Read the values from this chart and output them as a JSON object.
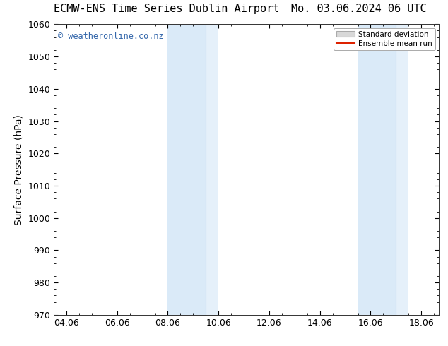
{
  "title_left": "ECMW-ENS Time Series Dublin Airport",
  "title_right": "Mo. 03.06.2024 06 UTC",
  "ylabel": "Surface Pressure (hPa)",
  "ylim": [
    970,
    1060
  ],
  "yticks": [
    970,
    980,
    990,
    1000,
    1010,
    1020,
    1030,
    1040,
    1050,
    1060
  ],
  "xlim_start": 3.5,
  "xlim_end": 18.7,
  "xtick_labels": [
    "04.06",
    "06.06",
    "08.06",
    "10.06",
    "12.06",
    "14.06",
    "16.06",
    "18.06"
  ],
  "xtick_positions": [
    4,
    6,
    8,
    10,
    12,
    14,
    16,
    18
  ],
  "shaded_regions": [
    {
      "x_start": 8.0,
      "x_end": 9.5,
      "color": "#daeaf8"
    },
    {
      "x_start": 9.5,
      "x_end": 10.0,
      "color": "#e5f0fa"
    },
    {
      "x_start": 15.5,
      "x_end": 17.0,
      "color": "#daeaf8"
    },
    {
      "x_start": 17.0,
      "x_end": 17.5,
      "color": "#e5f0fa"
    }
  ],
  "band_dividers": [
    9.5,
    17.0
  ],
  "divider_color": "#b8d4ea",
  "watermark_text": "© weatheronline.co.nz",
  "watermark_color": "#3366aa",
  "legend_std_label": "Standard deviation",
  "legend_mean_label": "Ensemble mean run",
  "legend_std_facecolor": "#d8d8d8",
  "legend_std_edgecolor": "#aaaaaa",
  "legend_mean_color": "#dd2200",
  "background_color": "#ffffff",
  "spine_color": "#333333",
  "title_fontsize": 11,
  "ylabel_fontsize": 10,
  "tick_fontsize": 9,
  "watermark_fontsize": 8.5
}
